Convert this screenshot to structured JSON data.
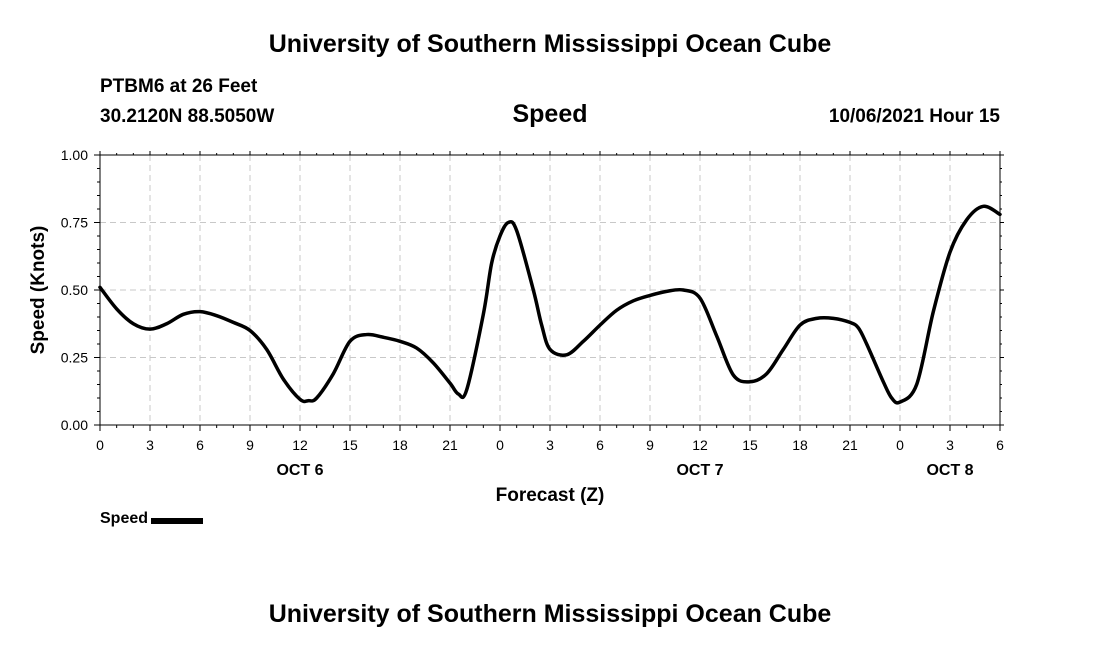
{
  "header": {
    "org_title": "University of Southern Mississippi Ocean Cube",
    "station": "PTBM6 at 26 Feet",
    "coords": "30.2120N  88.5050W",
    "timestamp": "10/06/2021 Hour 15"
  },
  "footer": {
    "org_title": "University of Southern Mississippi Ocean Cube"
  },
  "legend": {
    "label": "Speed",
    "color": "#000000"
  },
  "chart_data": {
    "type": "line",
    "title": "Speed",
    "xlabel": "Forecast (Z)",
    "ylabel": "Speed (Knots)",
    "xlim": [
      0,
      54
    ],
    "ylim": [
      0,
      1.0
    ],
    "grid": true,
    "x_tick_values": [
      0,
      3,
      6,
      9,
      12,
      15,
      18,
      21,
      24,
      27,
      30,
      33,
      36,
      39,
      42,
      45,
      48,
      51,
      54
    ],
    "x_tick_labels": [
      "0",
      "3",
      "6",
      "9",
      "12",
      "15",
      "18",
      "21",
      "0",
      "3",
      "6",
      "9",
      "12",
      "15",
      "18",
      "21",
      "0",
      "3",
      "6"
    ],
    "y_tick_values": [
      0,
      0.25,
      0.5,
      0.75,
      1.0
    ],
    "y_tick_labels": [
      "0.00",
      "0.25",
      "0.50",
      "0.75",
      "1.00"
    ],
    "date_labels": [
      {
        "x": 12,
        "label": "OCT 6"
      },
      {
        "x": 36,
        "label": "OCT 7"
      },
      {
        "x": 51,
        "label": "OCT 8"
      }
    ],
    "series": [
      {
        "name": "Speed",
        "color": "#000000",
        "x": [
          0,
          1,
          2,
          3,
          4,
          5,
          6,
          7,
          8,
          9,
          10,
          11,
          12,
          12.5,
          13,
          14,
          15,
          16,
          17,
          18,
          19,
          20,
          21,
          21.5,
          22,
          23,
          23.5,
          24,
          24.5,
          25,
          26,
          26.5,
          27,
          28,
          29,
          30,
          31,
          32,
          33,
          34,
          35,
          36,
          37,
          38,
          39,
          40,
          41,
          42,
          43,
          44,
          45,
          45.5,
          46,
          47,
          47.5,
          48,
          49,
          50,
          51,
          52,
          53,
          54
        ],
        "y": [
          0.51,
          0.43,
          0.375,
          0.355,
          0.375,
          0.41,
          0.42,
          0.405,
          0.38,
          0.35,
          0.28,
          0.17,
          0.095,
          0.09,
          0.1,
          0.19,
          0.31,
          0.335,
          0.325,
          0.31,
          0.285,
          0.23,
          0.155,
          0.115,
          0.13,
          0.41,
          0.6,
          0.7,
          0.75,
          0.72,
          0.5,
          0.37,
          0.28,
          0.26,
          0.31,
          0.37,
          0.425,
          0.46,
          0.48,
          0.495,
          0.5,
          0.47,
          0.33,
          0.185,
          0.16,
          0.19,
          0.28,
          0.37,
          0.395,
          0.395,
          0.38,
          0.36,
          0.3,
          0.16,
          0.1,
          0.085,
          0.15,
          0.42,
          0.64,
          0.76,
          0.81,
          0.78
        ]
      }
    ]
  }
}
